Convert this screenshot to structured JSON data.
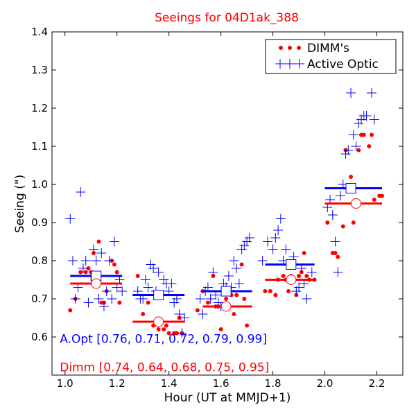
{
  "chart_data": {
    "type": "scatter",
    "title": "Seeings for 04D1ak_388",
    "xlabel": "Hour (UT at MMJD+1)",
    "ylabel": "Seeing (\")",
    "xlim": [
      0.95,
      2.3
    ],
    "ylim": [
      0.5,
      1.4
    ],
    "xticks": [
      "1.0",
      "1.2",
      "1.4",
      "1.6",
      "1.8",
      "2.0",
      "2.2"
    ],
    "xtick_values": [
      1.0,
      1.2,
      1.4,
      1.6,
      1.8,
      2.0,
      2.2
    ],
    "yticks": [
      "0.6",
      "0.7",
      "0.8",
      "0.9",
      "1.0",
      "1.1",
      "1.2",
      "1.3",
      "1.4"
    ],
    "ytick_values": [
      0.6,
      0.7,
      0.8,
      0.9,
      1.0,
      1.1,
      1.2,
      1.3,
      1.4
    ],
    "grid": false,
    "legend_position": "top-right",
    "legend": [
      {
        "label": "DIMM's",
        "marker": "dot",
        "color": "#ff0000"
      },
      {
        "label": "Active Optic",
        "marker": "plus",
        "color": "#0000ff"
      }
    ],
    "series": [
      {
        "name": "DIMM's",
        "marker": "dot",
        "color": "#ff0000",
        "x": [
          1.02,
          1.04,
          1.06,
          1.08,
          1.09,
          1.1,
          1.11,
          1.12,
          1.13,
          1.14,
          1.15,
          1.16,
          1.18,
          1.19,
          1.2,
          1.21,
          1.28,
          1.3,
          1.32,
          1.34,
          1.36,
          1.37,
          1.38,
          1.39,
          1.4,
          1.42,
          1.43,
          1.44,
          1.45,
          1.51,
          1.53,
          1.55,
          1.57,
          1.58,
          1.59,
          1.6,
          1.62,
          1.64,
          1.65,
          1.66,
          1.68,
          1.69,
          1.7,
          1.77,
          1.79,
          1.81,
          1.82,
          1.84,
          1.85,
          1.86,
          1.87,
          1.89,
          1.9,
          1.91,
          1.92,
          1.93,
          1.94,
          1.96,
          2.01,
          2.03,
          2.04,
          2.05,
          2.07,
          2.08,
          2.1,
          2.11,
          2.13,
          2.14,
          2.15,
          2.17,
          2.18,
          2.19,
          2.21,
          2.22
        ],
        "y": [
          0.67,
          0.7,
          0.77,
          0.77,
          0.78,
          0.77,
          0.82,
          0.76,
          0.85,
          0.69,
          0.69,
          0.72,
          0.8,
          0.79,
          0.77,
          0.69,
          0.76,
          0.66,
          0.69,
          0.63,
          0.62,
          0.64,
          0.62,
          0.63,
          0.61,
          0.61,
          0.61,
          0.65,
          0.61,
          0.67,
          0.72,
          0.69,
          0.76,
          0.68,
          0.68,
          0.62,
          0.7,
          0.71,
          0.66,
          0.71,
          0.79,
          0.7,
          0.63,
          0.72,
          0.72,
          0.71,
          0.75,
          0.76,
          0.75,
          0.72,
          0.76,
          0.71,
          0.76,
          0.77,
          0.82,
          0.76,
          0.75,
          0.75,
          0.9,
          0.82,
          0.82,
          0.81,
          0.89,
          1.09,
          1.02,
          0.9,
          1.09,
          1.13,
          1.13,
          1.1,
          1.13,
          0.96,
          0.97,
          0.97
        ]
      },
      {
        "name": "Active Optic",
        "marker": "plus",
        "color": "#0000ff",
        "x": [
          1.02,
          1.03,
          1.04,
          1.05,
          1.06,
          1.07,
          1.08,
          1.09,
          1.1,
          1.11,
          1.12,
          1.13,
          1.14,
          1.15,
          1.16,
          1.17,
          1.18,
          1.19,
          1.2,
          1.21,
          1.22,
          1.28,
          1.29,
          1.3,
          1.31,
          1.32,
          1.33,
          1.34,
          1.35,
          1.36,
          1.37,
          1.38,
          1.39,
          1.4,
          1.41,
          1.42,
          1.43,
          1.44,
          1.45,
          1.46,
          1.52,
          1.53,
          1.54,
          1.55,
          1.56,
          1.57,
          1.58,
          1.59,
          1.6,
          1.61,
          1.62,
          1.63,
          1.64,
          1.65,
          1.66,
          1.67,
          1.68,
          1.69,
          1.7,
          1.71,
          1.76,
          1.78,
          1.8,
          1.81,
          1.82,
          1.83,
          1.84,
          1.85,
          1.86,
          1.87,
          1.88,
          1.89,
          1.9,
          1.91,
          1.92,
          1.93,
          1.95,
          2.01,
          2.02,
          2.03,
          2.04,
          2.05,
          2.06,
          2.07,
          2.08,
          2.09,
          2.1,
          2.11,
          2.12,
          2.13,
          2.14,
          2.15,
          2.16,
          2.18,
          2.19
        ],
        "y": [
          0.91,
          0.8,
          0.7,
          0.73,
          0.98,
          0.78,
          0.8,
          0.69,
          0.76,
          0.83,
          0.8,
          0.7,
          0.82,
          0.68,
          0.72,
          0.8,
          0.7,
          0.85,
          0.73,
          0.75,
          0.72,
          0.72,
          0.7,
          0.7,
          0.75,
          0.73,
          0.79,
          0.78,
          0.72,
          0.77,
          0.71,
          0.75,
          0.74,
          0.72,
          0.74,
          0.69,
          0.7,
          0.66,
          0.61,
          0.65,
          0.7,
          0.66,
          0.72,
          0.73,
          0.7,
          0.77,
          0.71,
          0.69,
          0.68,
          0.74,
          0.73,
          0.76,
          0.73,
          0.8,
          0.78,
          0.74,
          0.83,
          0.84,
          0.85,
          0.86,
          0.8,
          0.85,
          0.83,
          0.86,
          0.88,
          0.91,
          0.8,
          0.83,
          0.79,
          0.75,
          0.81,
          0.72,
          0.73,
          0.78,
          0.74,
          0.7,
          0.77,
          0.94,
          0.96,
          0.92,
          0.85,
          0.77,
          0.97,
          1.0,
          1.08,
          1.09,
          1.24,
          1.13,
          1.1,
          1.16,
          1.17,
          1.18,
          1.18,
          1.24,
          1.17
        ]
      }
    ],
    "bin_means": {
      "aopt": {
        "color": "#0000ff",
        "segments": [
          [
            1.02,
            1.22
          ],
          [
            1.26,
            1.46
          ],
          [
            1.53,
            1.72
          ],
          [
            1.77,
            1.96
          ],
          [
            2.0,
            2.22
          ]
        ],
        "markers": [
          {
            "x": 1.12,
            "y": 0.76
          },
          {
            "x": 1.36,
            "y": 0.71
          },
          {
            "x": 1.62,
            "y": 0.72
          },
          {
            "x": 1.87,
            "y": 0.79
          },
          {
            "x": 2.1,
            "y": 0.99
          }
        ]
      },
      "dimm": {
        "color": "#ff0000",
        "segments": [
          [
            1.02,
            1.22
          ],
          [
            1.26,
            1.46
          ],
          [
            1.53,
            1.72
          ],
          [
            1.77,
            1.96
          ],
          [
            2.0,
            2.22
          ]
        ],
        "markers": [
          {
            "x": 1.12,
            "y": 0.74
          },
          {
            "x": 1.36,
            "y": 0.64
          },
          {
            "x": 1.62,
            "y": 0.68
          },
          {
            "x": 1.87,
            "y": 0.75
          },
          {
            "x": 2.12,
            "y": 0.95
          }
        ]
      }
    },
    "annotations": [
      {
        "text": "A.Opt [0.76, 0.71, 0.72, 0.79, 0.99]",
        "color": "#0000ff",
        "x": 0.98,
        "y": 0.585
      },
      {
        "text": "Dimm [0.74, 0.64, 0.68, 0.75, 0.95]",
        "color": "#ff0000",
        "x": 0.98,
        "y": 0.51
      }
    ]
  }
}
